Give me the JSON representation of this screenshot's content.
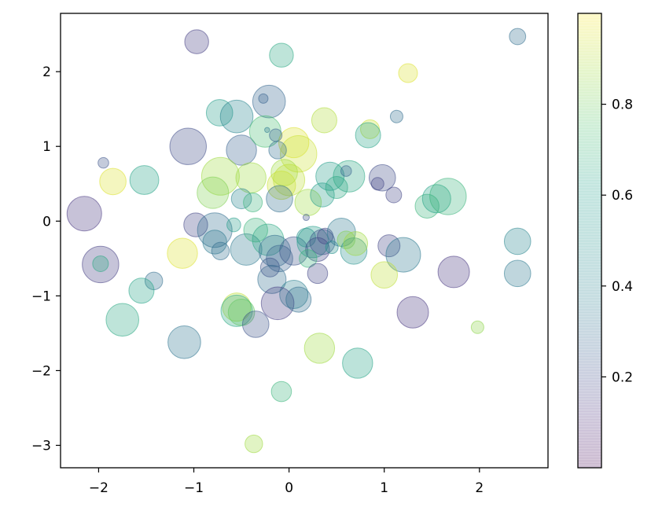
{
  "chart_data": {
    "type": "scatter",
    "title": "",
    "xlabel": "",
    "ylabel": "",
    "xlim": [
      -2.4,
      2.72
    ],
    "ylim": [
      -3.3,
      2.78
    ],
    "grid": false,
    "x_ticks": [
      -2,
      -1,
      0,
      1,
      2
    ],
    "x_tick_labels": [
      "−2",
      "−1",
      "0",
      "1",
      "2"
    ],
    "y_ticks": [
      -3,
      -2,
      -1,
      0,
      1,
      2
    ],
    "y_tick_labels": [
      "−3",
      "−2",
      "−1",
      "0",
      "1",
      "2"
    ],
    "marker_alpha": 0.3,
    "marker_size_unit": "relative radius 0-1",
    "colormap": "viridis",
    "colorbar": {
      "range": [
        0.0,
        1.0
      ],
      "ticks": [
        0.2,
        0.4,
        0.6,
        0.8
      ],
      "tick_labels": [
        "0.2",
        "0.4",
        "0.6",
        "0.8"
      ]
    },
    "points": [
      {
        "x": -0.97,
        "y": 2.4,
        "s": 0.38,
        "c": 0.18
      },
      {
        "x": -0.08,
        "y": 2.22,
        "s": 0.38,
        "c": 0.6
      },
      {
        "x": 1.25,
        "y": 1.98,
        "s": 0.3,
        "c": 0.95
      },
      {
        "x": 2.4,
        "y": 2.47,
        "s": 0.26,
        "c": 0.35
      },
      {
        "x": -0.73,
        "y": 1.45,
        "s": 0.42,
        "c": 0.55
      },
      {
        "x": -0.55,
        "y": 1.4,
        "s": 0.52,
        "c": 0.45
      },
      {
        "x": -0.21,
        "y": 1.6,
        "s": 0.52,
        "c": 0.32
      },
      {
        "x": -0.27,
        "y": 1.64,
        "s": 0.15,
        "c": 0.3
      },
      {
        "x": 0.37,
        "y": 1.35,
        "s": 0.4,
        "c": 0.88
      },
      {
        "x": 0.85,
        "y": 1.23,
        "s": 0.3,
        "c": 0.92
      },
      {
        "x": 0.83,
        "y": 1.15,
        "s": 0.4,
        "c": 0.58
      },
      {
        "x": 1.13,
        "y": 1.4,
        "s": 0.2,
        "c": 0.35
      },
      {
        "x": -1.06,
        "y": 1.0,
        "s": 0.58,
        "c": 0.22
      },
      {
        "x": -0.5,
        "y": 0.95,
        "s": 0.48,
        "c": 0.3
      },
      {
        "x": -0.25,
        "y": 1.2,
        "s": 0.5,
        "c": 0.7
      },
      {
        "x": 0.05,
        "y": 1.05,
        "s": 0.48,
        "c": 0.95
      },
      {
        "x": 0.1,
        "y": 0.9,
        "s": 0.58,
        "c": 0.92
      },
      {
        "x": -0.23,
        "y": 1.22,
        "s": 0.08,
        "c": 0.4
      },
      {
        "x": -0.14,
        "y": 1.15,
        "s": 0.2,
        "c": 0.3
      },
      {
        "x": -0.12,
        "y": 0.95,
        "s": 0.28,
        "c": 0.35
      },
      {
        "x": -1.95,
        "y": 0.78,
        "s": 0.17,
        "c": 0.25
      },
      {
        "x": -1.85,
        "y": 0.53,
        "s": 0.42,
        "c": 0.95
      },
      {
        "x": -1.52,
        "y": 0.55,
        "s": 0.46,
        "c": 0.58
      },
      {
        "x": -0.72,
        "y": 0.6,
        "s": 0.6,
        "c": 0.85
      },
      {
        "x": -0.8,
        "y": 0.38,
        "s": 0.5,
        "c": 0.8
      },
      {
        "x": -0.4,
        "y": 0.58,
        "s": 0.48,
        "c": 0.85
      },
      {
        "x": -0.05,
        "y": 0.65,
        "s": 0.42,
        "c": 0.85
      },
      {
        "x": 0.0,
        "y": 0.55,
        "s": 0.5,
        "c": 0.9
      },
      {
        "x": -0.08,
        "y": 0.48,
        "s": 0.45,
        "c": 0.92
      },
      {
        "x": 0.43,
        "y": 0.6,
        "s": 0.45,
        "c": 0.55
      },
      {
        "x": 0.63,
        "y": 0.6,
        "s": 0.5,
        "c": 0.6
      },
      {
        "x": 0.6,
        "y": 0.67,
        "s": 0.17,
        "c": 0.3
      },
      {
        "x": 0.98,
        "y": 0.58,
        "s": 0.42,
        "c": 0.22
      },
      {
        "x": 0.93,
        "y": 0.5,
        "s": 0.2,
        "c": 0.2
      },
      {
        "x": 1.1,
        "y": 0.35,
        "s": 0.25,
        "c": 0.2
      },
      {
        "x": 1.45,
        "y": 0.2,
        "s": 0.38,
        "c": 0.65
      },
      {
        "x": 1.55,
        "y": 0.3,
        "s": 0.45,
        "c": 0.58
      },
      {
        "x": 1.67,
        "y": 0.33,
        "s": 0.58,
        "c": 0.65
      },
      {
        "x": -2.15,
        "y": 0.1,
        "s": 0.55,
        "c": 0.15
      },
      {
        "x": -0.5,
        "y": 0.3,
        "s": 0.32,
        "c": 0.45
      },
      {
        "x": -0.38,
        "y": 0.25,
        "s": 0.3,
        "c": 0.65
      },
      {
        "x": -0.1,
        "y": 0.3,
        "s": 0.42,
        "c": 0.35
      },
      {
        "x": 0.2,
        "y": 0.25,
        "s": 0.42,
        "c": 0.85
      },
      {
        "x": 0.35,
        "y": 0.35,
        "s": 0.38,
        "c": 0.55
      },
      {
        "x": 0.5,
        "y": 0.45,
        "s": 0.35,
        "c": 0.6
      },
      {
        "x": 0.18,
        "y": 0.05,
        "s": 0.1,
        "c": 0.25
      },
      {
        "x": -0.98,
        "y": -0.05,
        "s": 0.38,
        "c": 0.2
      },
      {
        "x": -0.78,
        "y": -0.12,
        "s": 0.55,
        "c": 0.35
      },
      {
        "x": -0.78,
        "y": -0.28,
        "s": 0.38,
        "c": 0.4
      },
      {
        "x": -0.72,
        "y": -0.4,
        "s": 0.28,
        "c": 0.35
      },
      {
        "x": -0.58,
        "y": -0.05,
        "s": 0.22,
        "c": 0.55
      },
      {
        "x": -0.45,
        "y": -0.38,
        "s": 0.5,
        "c": 0.4
      },
      {
        "x": -0.35,
        "y": -0.12,
        "s": 0.38,
        "c": 0.65
      },
      {
        "x": -0.22,
        "y": -0.25,
        "s": 0.5,
        "c": 0.6
      },
      {
        "x": -0.15,
        "y": -0.4,
        "s": 0.5,
        "c": 0.35
      },
      {
        "x": -0.1,
        "y": -0.5,
        "s": 0.42,
        "c": 0.3
      },
      {
        "x": 0.05,
        "y": -0.4,
        "s": 0.45,
        "c": 0.25
      },
      {
        "x": 0.18,
        "y": -0.22,
        "s": 0.3,
        "c": 0.5
      },
      {
        "x": 0.25,
        "y": -0.28,
        "s": 0.5,
        "c": 0.55
      },
      {
        "x": 0.3,
        "y": -0.38,
        "s": 0.38,
        "c": 0.2
      },
      {
        "x": 0.35,
        "y": -0.28,
        "s": 0.4,
        "c": 0.25
      },
      {
        "x": 0.38,
        "y": -0.2,
        "s": 0.25,
        "c": 0.2
      },
      {
        "x": 0.45,
        "y": -0.35,
        "s": 0.2,
        "c": 0.5
      },
      {
        "x": 0.55,
        "y": -0.15,
        "s": 0.45,
        "c": 0.4
      },
      {
        "x": 0.6,
        "y": -0.25,
        "s": 0.28,
        "c": 0.8
      },
      {
        "x": 0.68,
        "y": -0.4,
        "s": 0.42,
        "c": 0.5
      },
      {
        "x": 0.7,
        "y": -0.3,
        "s": 0.38,
        "c": 0.85
      },
      {
        "x": 1.05,
        "y": -0.33,
        "s": 0.35,
        "c": 0.2
      },
      {
        "x": 1.2,
        "y": -0.45,
        "s": 0.55,
        "c": 0.4
      },
      {
        "x": 1.0,
        "y": -0.72,
        "s": 0.42,
        "c": 0.9
      },
      {
        "x": 2.4,
        "y": -0.27,
        "s": 0.42,
        "c": 0.45
      },
      {
        "x": 2.4,
        "y": -0.7,
        "s": 0.42,
        "c": 0.4
      },
      {
        "x": 1.73,
        "y": -0.68,
        "s": 0.5,
        "c": 0.15
      },
      {
        "x": -1.98,
        "y": -0.58,
        "s": 0.58,
        "c": 0.18
      },
      {
        "x": -1.98,
        "y": -0.57,
        "s": 0.25,
        "c": 0.6
      },
      {
        "x": -1.42,
        "y": -0.8,
        "s": 0.28,
        "c": 0.35
      },
      {
        "x": -1.55,
        "y": -0.93,
        "s": 0.4,
        "c": 0.58
      },
      {
        "x": -1.12,
        "y": -0.43,
        "s": 0.48,
        "c": 0.95
      },
      {
        "x": -1.75,
        "y": -1.32,
        "s": 0.52,
        "c": 0.6
      },
      {
        "x": -0.18,
        "y": -0.78,
        "s": 0.45,
        "c": 0.35
      },
      {
        "x": -0.2,
        "y": -0.62,
        "s": 0.3,
        "c": 0.25
      },
      {
        "x": 0.05,
        "y": -0.98,
        "s": 0.45,
        "c": 0.42
      },
      {
        "x": 0.2,
        "y": -0.5,
        "s": 0.28,
        "c": 0.65
      },
      {
        "x": 0.3,
        "y": -0.7,
        "s": 0.32,
        "c": 0.2
      },
      {
        "x": -0.55,
        "y": -1.15,
        "s": 0.45,
        "c": 0.9
      },
      {
        "x": -0.55,
        "y": -1.2,
        "s": 0.5,
        "c": 0.6
      },
      {
        "x": -0.5,
        "y": -1.22,
        "s": 0.42,
        "c": 0.75
      },
      {
        "x": -0.35,
        "y": -1.38,
        "s": 0.42,
        "c": 0.25
      },
      {
        "x": -0.12,
        "y": -1.1,
        "s": 0.52,
        "c": 0.18
      },
      {
        "x": 0.1,
        "y": -1.05,
        "s": 0.4,
        "c": 0.35
      },
      {
        "x": -1.1,
        "y": -1.62,
        "s": 0.52,
        "c": 0.38
      },
      {
        "x": 0.32,
        "y": -1.7,
        "s": 0.48,
        "c": 0.85
      },
      {
        "x": 0.72,
        "y": -1.9,
        "s": 0.48,
        "c": 0.58
      },
      {
        "x": 1.3,
        "y": -1.22,
        "s": 0.5,
        "c": 0.15
      },
      {
        "x": 1.98,
        "y": -1.42,
        "s": 0.2,
        "c": 0.82
      },
      {
        "x": -0.08,
        "y": -2.28,
        "s": 0.32,
        "c": 0.65
      },
      {
        "x": -0.37,
        "y": -2.98,
        "s": 0.28,
        "c": 0.85
      }
    ]
  }
}
